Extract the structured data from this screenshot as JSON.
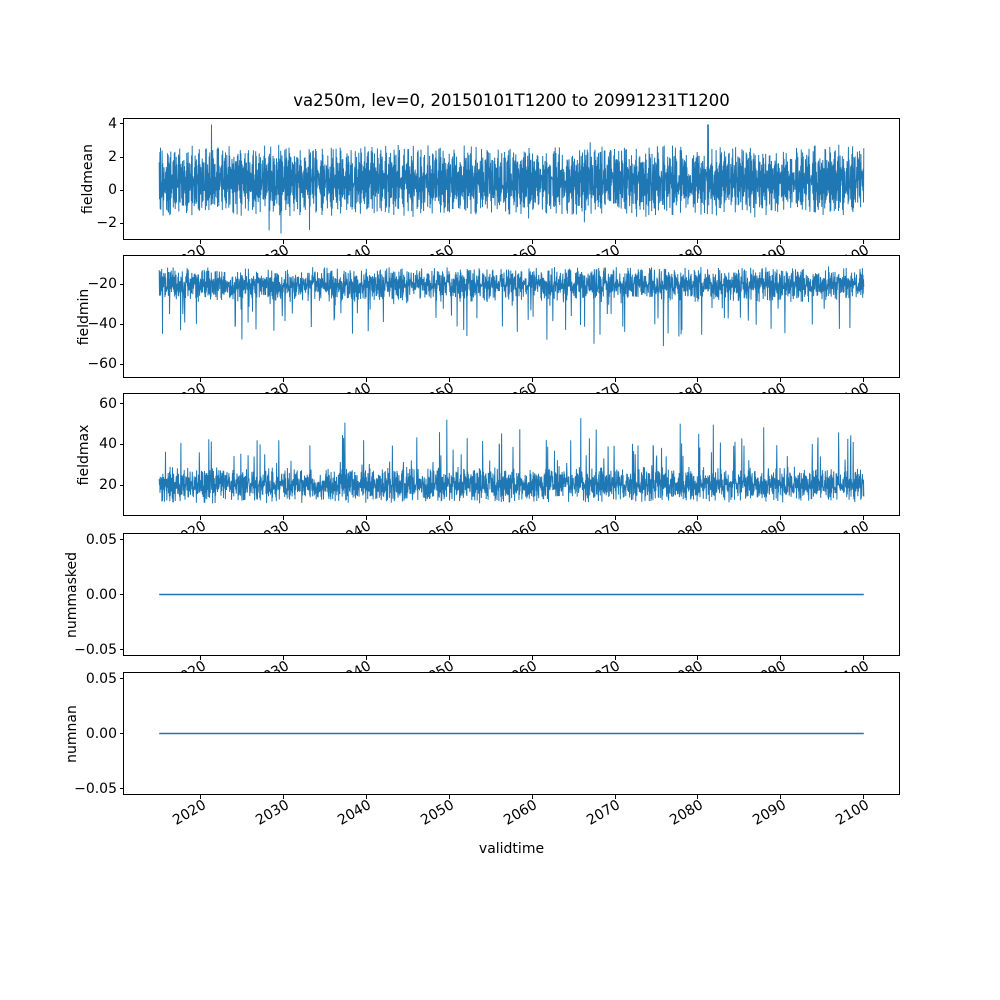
{
  "figure": {
    "background_color": "#ffffff",
    "line_color": "#1f77b4",
    "text_color": "#000000"
  },
  "chart_data": {
    "type": "line",
    "title": "va250m, lev=0, 20150101T1200 to 20991231T1200",
    "xlabel": "validtime",
    "legend": "none",
    "grid": false,
    "x": {
      "lim": [
        2010.75,
        2104.25
      ],
      "data_start": 2015,
      "data_end": 2100,
      "ticks": [
        2020,
        2030,
        2040,
        2050,
        2060,
        2070,
        2080,
        2090,
        2100
      ],
      "tick_labels": [
        "2020",
        "2030",
        "2040",
        "2050",
        "2060",
        "2070",
        "2080",
        "2090",
        "2100"
      ],
      "tick_rotation_deg": 30
    },
    "subplots": [
      {
        "name": "fieldmean",
        "ylabel": "fieldmean",
        "ylim": [
          -2.95,
          4.3
        ],
        "yticks": [
          4,
          2,
          0,
          -2
        ],
        "ytick_labels": [
          "4",
          "2",
          "0",
          "−2"
        ],
        "line_width": 1,
        "summary": {
          "pattern": "dense noisy oscillation",
          "dense_band": [
            -1.7,
            2.8
          ],
          "min": -2.6,
          "max": 3.95
        },
        "gen": {
          "seed": 101,
          "n": 2200,
          "base": 0.55,
          "osc_amp": 1.55,
          "phase_step": 2.9,
          "phase_jitter": 0.8,
          "noise_amp": 1.3,
          "spike_prob": 0.012,
          "spike_amp": 1.3,
          "spike_dir": 0,
          "deep_prob": 0,
          "deep_amp": 0,
          "clamp": [
            -2.62,
            3.97
          ]
        }
      },
      {
        "name": "fieldmin",
        "ylabel": "fieldmin",
        "ylim": [
          -66.5,
          -5.8
        ],
        "yticks": [
          -20,
          -40,
          -60
        ],
        "ytick_labels": [
          "−20",
          "−40",
          "−60"
        ],
        "line_width": 1,
        "summary": {
          "pattern": "dense noise with downward spikes",
          "dense_band": [
            -31,
            -11
          ],
          "min": -63.5,
          "max": -9
        },
        "gen": {
          "seed": 202,
          "n": 2600,
          "base": -20,
          "osc_amp": 4,
          "phase_step": 2.8,
          "phase_jitter": 0.9,
          "noise_amp": 10,
          "spike_prob": 0.04,
          "spike_amp": 18,
          "spike_dir": -1,
          "deep_prob": 0.004,
          "deep_amp": 26,
          "clamp": [
            -63.5,
            -8.6
          ]
        }
      },
      {
        "name": "fieldmax",
        "ylabel": "fieldmax",
        "ylim": [
          5.3,
          64.7
        ],
        "yticks": [
          60,
          40,
          20
        ],
        "ytick_labels": [
          "60",
          "40",
          "20"
        ],
        "line_width": 1,
        "summary": {
          "pattern": "dense noise with upward spikes",
          "dense_band": [
            10,
            32
          ],
          "min": 8.5,
          "max": 62
        },
        "gen": {
          "seed": 303,
          "n": 2600,
          "base": 20,
          "osc_amp": 4,
          "phase_step": 2.8,
          "phase_jitter": 0.9,
          "noise_amp": 10,
          "spike_prob": 0.04,
          "spike_amp": 18,
          "spike_dir": 1,
          "deep_prob": 0.004,
          "deep_amp": 26,
          "clamp": [
            8.4,
            62.2
          ]
        }
      },
      {
        "name": "nummasked",
        "ylabel": "nummasked",
        "ylim": [
          -0.055,
          0.055
        ],
        "yticks": [
          0.05,
          0,
          -0.05
        ],
        "ytick_labels": [
          "0.05",
          "0.00",
          "−0.05"
        ],
        "line_width": 1.5,
        "summary": {
          "pattern": "constant",
          "value": 0
        },
        "gen": {
          "flat": 0,
          "n": 2
        }
      },
      {
        "name": "numnan",
        "ylabel": "numnan",
        "ylim": [
          -0.055,
          0.055
        ],
        "yticks": [
          0.05,
          0,
          -0.05
        ],
        "ytick_labels": [
          "0.05",
          "0.00",
          "−0.05"
        ],
        "line_width": 1.5,
        "summary": {
          "pattern": "constant",
          "value": 0
        },
        "gen": {
          "flat": 0,
          "n": 2
        }
      }
    ]
  }
}
